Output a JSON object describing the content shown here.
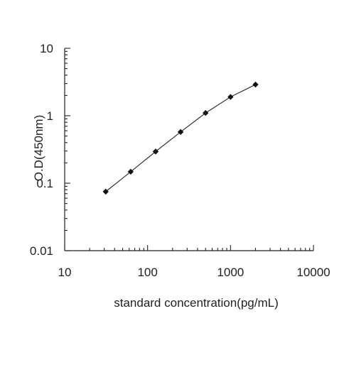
{
  "chart_data": {
    "type": "line",
    "title": "",
    "xlabel": "standard concentration(pg/mL)",
    "ylabel": "O.D(450nm)",
    "x_scale": "log",
    "y_scale": "log",
    "xlim": [
      10,
      10000
    ],
    "ylim": [
      0.01,
      10
    ],
    "x_ticks": [
      "10",
      "100",
      "1000",
      "10000"
    ],
    "y_ticks": [
      "0.01",
      "0.1",
      "1",
      "10"
    ],
    "grid": false,
    "legend": "none",
    "series": [
      {
        "x": [
          31.25,
          62.5,
          125,
          250,
          500,
          1000,
          2000
        ],
        "y": [
          0.075,
          0.148,
          0.295,
          0.575,
          1.1,
          1.9,
          2.9
        ]
      }
    ],
    "colors": {
      "line": "#333333",
      "marker": "#111111",
      "axis": "#222222",
      "text": "#222222"
    }
  }
}
